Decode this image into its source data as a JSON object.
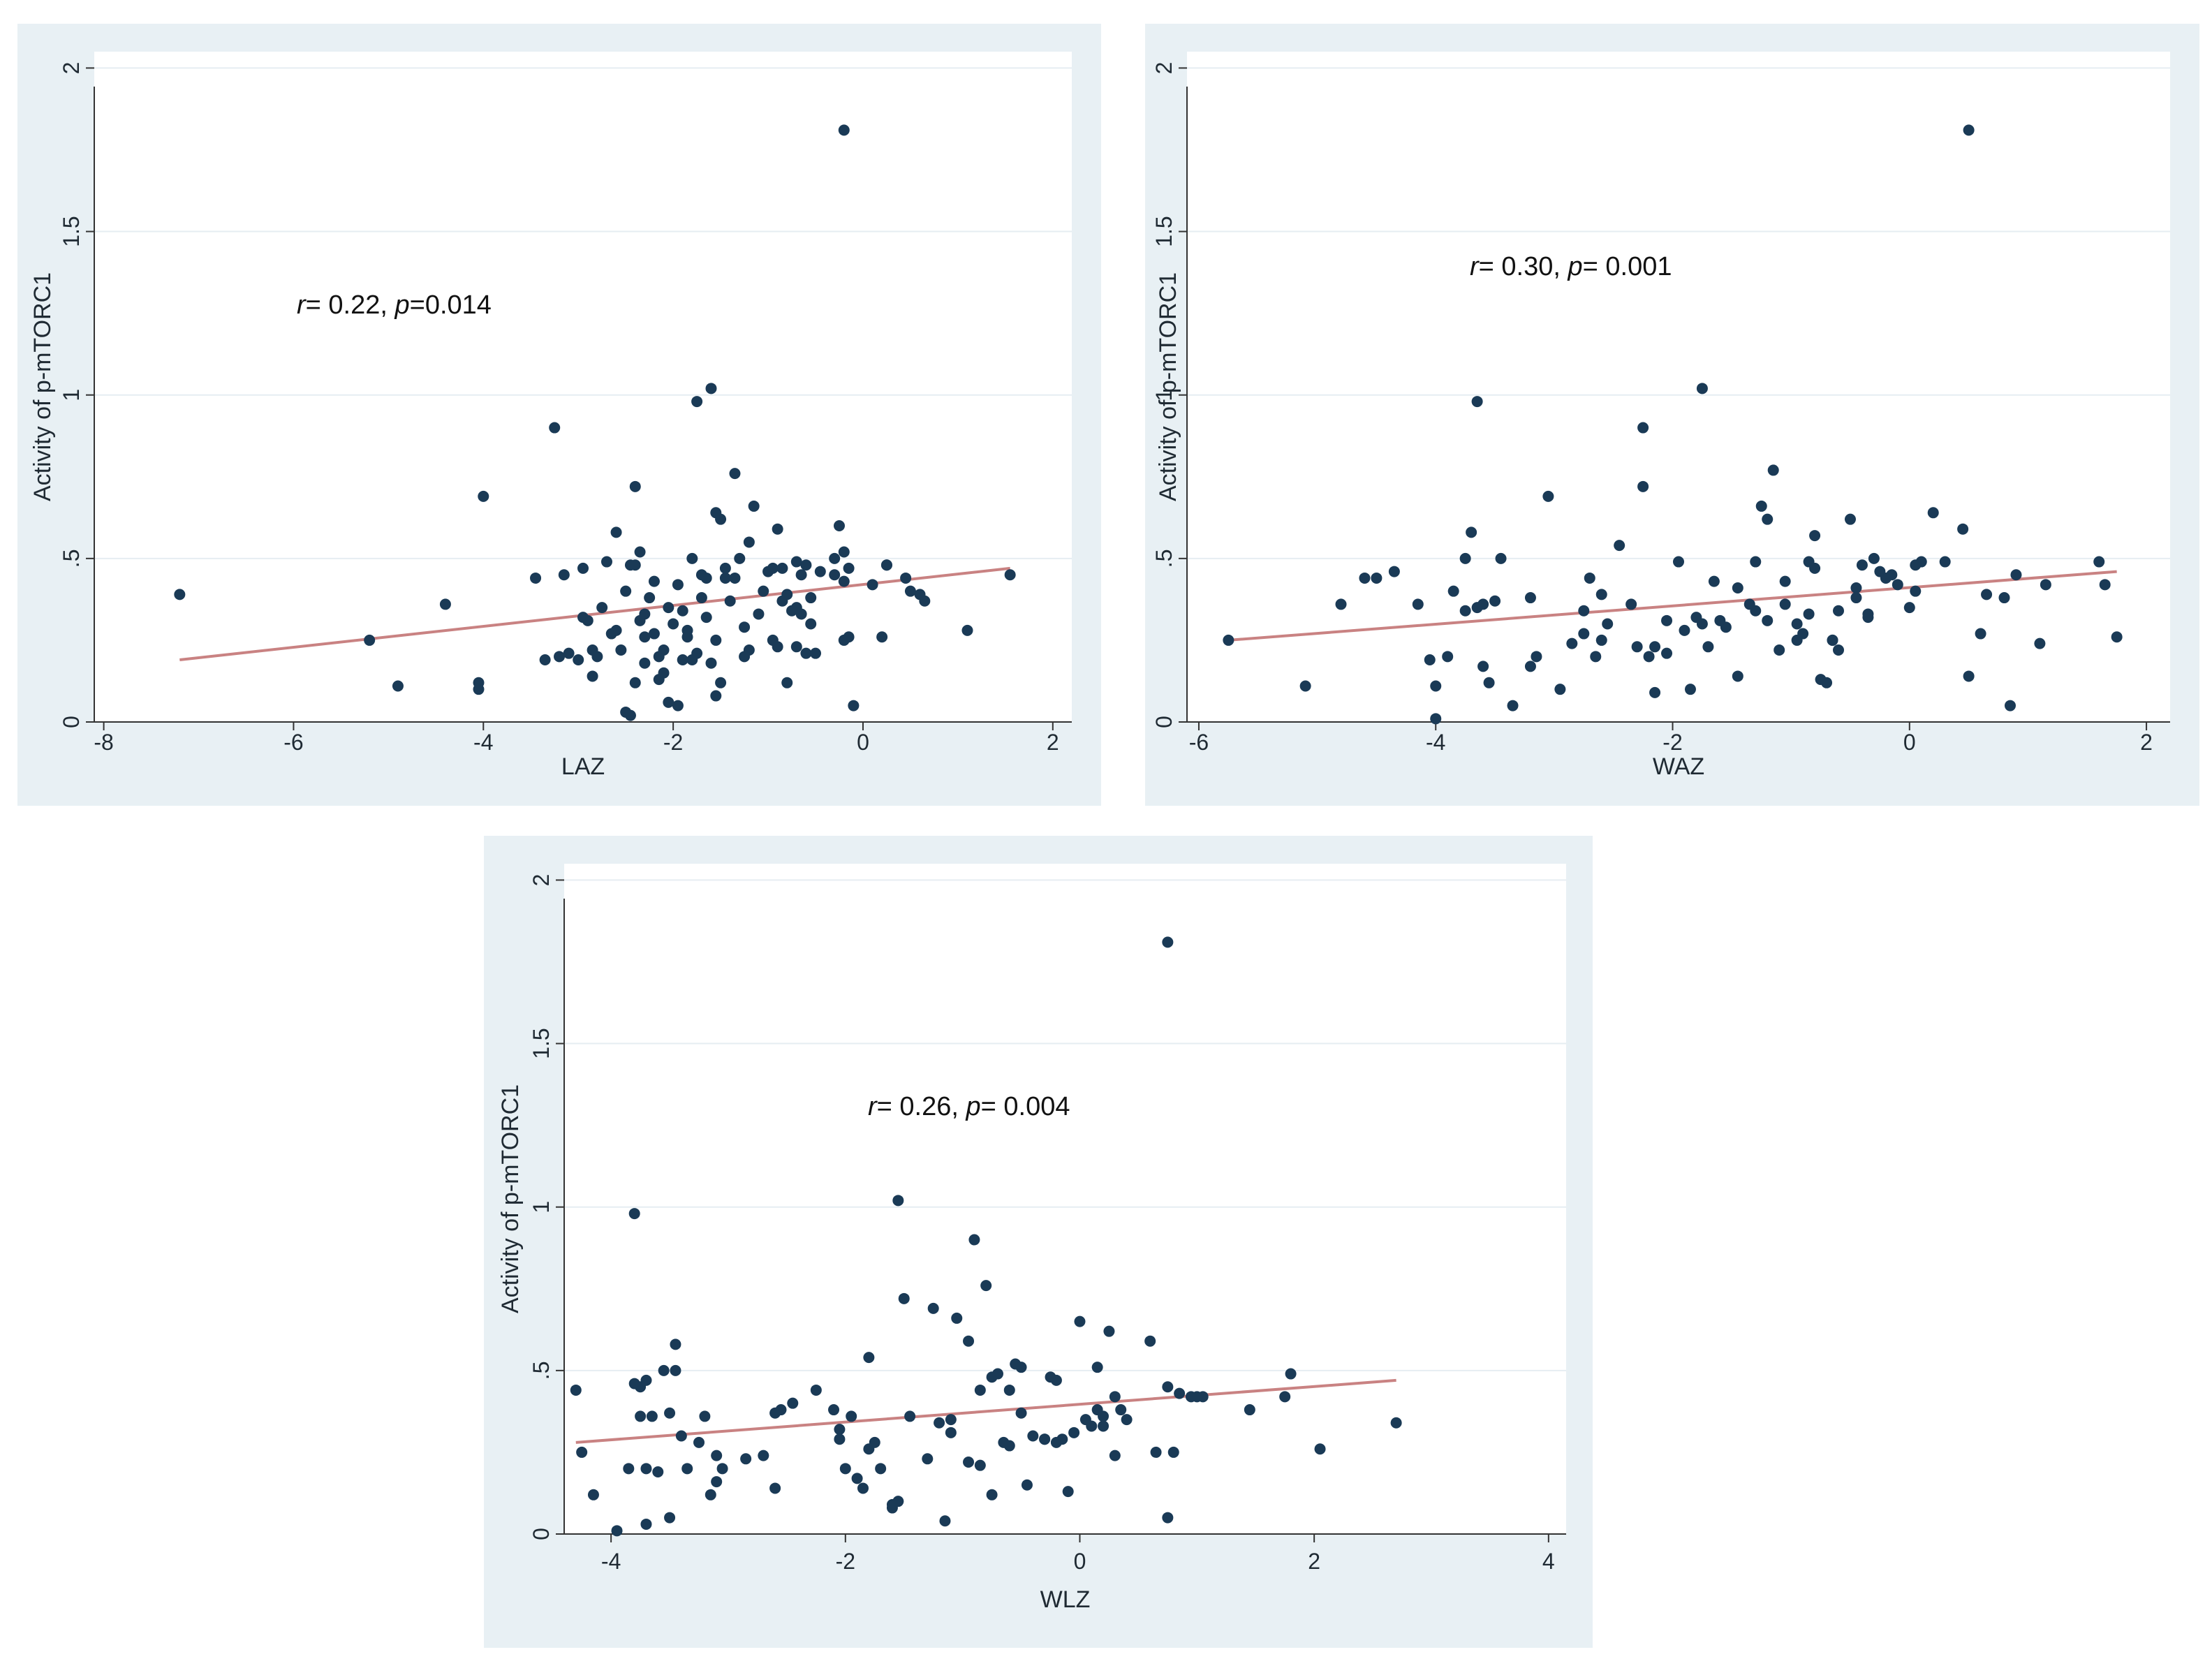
{
  "colors": {
    "panel_background": "#e8f0f4",
    "plot_background": "#ffffff",
    "point": "#1a3a56",
    "fit_line": "#c98282",
    "gridline": "#e6edf2",
    "axis": "#333333"
  },
  "chart_data": [
    {
      "type": "scatter",
      "xlabel": "LAZ",
      "ylabel": "Activity of p-mTORC1",
      "xlim": [
        -8.1,
        2.2
      ],
      "ylim": [
        0,
        2.05
      ],
      "xticks": [
        -8,
        -6,
        -4,
        -2,
        0,
        2
      ],
      "xtick_labels": [
        "-8",
        "-6",
        "-4",
        "-2",
        "0",
        "2"
      ],
      "yticks": [
        0,
        0.5,
        1,
        1.5,
        2
      ],
      "ytick_labels": [
        "0",
        ".5",
        "1",
        "1.5",
        "2"
      ],
      "grid": "horizontal",
      "annotation": {
        "r_symbol": "r",
        "r_text": "= 0.22, ",
        "p_symbol": "p",
        "p_text": "=0.014"
      },
      "fit_line": {
        "x": [
          -7.2,
          1.55
        ],
        "y": [
          0.19,
          0.47
        ]
      },
      "x": [
        -7.2,
        -5.2,
        -4.9,
        -4.4,
        -4.05,
        -4.05,
        -4.0,
        -3.25,
        -3.2,
        -3.15,
        -3.0,
        -2.95,
        -2.9,
        -2.85,
        -2.8,
        -2.7,
        -2.65,
        -2.6,
        -2.55,
        -2.5,
        -2.45,
        -2.4,
        -2.35,
        -2.3,
        -2.3,
        -2.25,
        -2.2,
        -2.15,
        -2.1,
        -2.05,
        -2.0,
        -1.95,
        -1.9,
        -1.85,
        -1.8,
        -1.8,
        -1.75,
        -1.7,
        -1.65,
        -1.6,
        -1.55,
        -1.5,
        -1.45,
        -1.4,
        -1.35,
        -1.3,
        -1.25,
        -1.2,
        -1.15,
        -1.1,
        -1.0,
        -0.95,
        -0.9,
        -0.85,
        -0.8,
        -0.75,
        -0.7,
        -0.65,
        -0.6,
        -0.55,
        -0.5,
        -0.45,
        -0.3,
        -0.25,
        -0.2,
        -0.2,
        -0.15,
        -0.1,
        0.1,
        0.2,
        0.25,
        0.45,
        0.5,
        0.6,
        0.65,
        1.1,
        1.55,
        -3.45,
        -3.35,
        -3.1,
        -2.95,
        -2.85,
        -2.75,
        -2.6,
        -2.5,
        -2.45,
        -2.4,
        -2.35,
        -2.3,
        -2.2,
        -2.15,
        -2.1,
        -2.05,
        -1.95,
        -1.9,
        -1.85,
        -1.75,
        -1.7,
        -1.65,
        -1.6,
        -1.55,
        -1.5,
        -1.45,
        -1.35,
        -1.25,
        -1.2,
        -1.05,
        -0.9,
        -0.85,
        -0.8,
        -0.7,
        -0.65,
        -0.6,
        -0.55,
        -0.3,
        -0.2,
        -0.15,
        -0.7,
        -0.95,
        0.25,
        -1.55,
        -2.4
      ],
      "y": [
        0.39,
        0.25,
        0.11,
        0.36,
        0.12,
        0.1,
        0.69,
        0.9,
        0.2,
        0.45,
        0.19,
        0.47,
        0.31,
        0.22,
        0.2,
        0.49,
        0.27,
        0.58,
        0.22,
        0.4,
        0.48,
        0.72,
        0.52,
        0.33,
        0.18,
        0.38,
        0.43,
        0.2,
        0.15,
        0.35,
        0.3,
        0.42,
        0.34,
        0.26,
        0.5,
        0.19,
        0.98,
        0.38,
        0.44,
        1.02,
        0.64,
        0.62,
        0.44,
        0.37,
        0.76,
        0.5,
        0.29,
        0.22,
        0.66,
        0.33,
        0.46,
        0.25,
        0.59,
        0.37,
        0.12,
        0.34,
        0.49,
        0.45,
        0.48,
        0.38,
        0.21,
        0.46,
        0.45,
        0.6,
        0.25,
        0.52,
        0.26,
        0.05,
        0.42,
        0.26,
        0.48,
        0.44,
        0.4,
        0.39,
        0.37,
        0.28,
        0.45,
        0.44,
        0.19,
        0.21,
        0.32,
        0.14,
        0.35,
        0.28,
        0.03,
        0.02,
        0.12,
        0.31,
        0.26,
        0.27,
        0.13,
        0.22,
        0.06,
        0.05,
        0.19,
        0.28,
        0.21,
        0.45,
        0.32,
        0.18,
        0.08,
        0.12,
        0.47,
        0.44,
        0.2,
        0.55,
        0.4,
        0.23,
        0.47,
        0.39,
        0.23,
        0.33,
        0.21,
        0.3,
        0.5,
        0.43,
        0.47,
        0.35,
        0.47,
        0.48,
        0.25,
        0.48
      ],
      "outlier": {
        "x": -0.2,
        "y": 1.81
      }
    },
    {
      "type": "scatter",
      "xlabel": "WAZ",
      "ylabel": "Activity of p-mTORC1",
      "xlim": [
        -6.1,
        2.2
      ],
      "ylim": [
        0,
        2.05
      ],
      "xticks": [
        -6,
        -4,
        -2,
        0,
        2
      ],
      "xtick_labels": [
        "-6",
        "-4",
        "-2",
        "0",
        "2"
      ],
      "yticks": [
        0,
        0.5,
        1,
        1.5,
        2
      ],
      "ytick_labels": [
        "0",
        ".5",
        "1",
        "1.5",
        "2"
      ],
      "grid": "horizontal",
      "annotation": {
        "r_symbol": "r",
        "r_text": "= 0.30, ",
        "p_symbol": "p",
        "p_text": "= 0.001"
      },
      "fit_line": {
        "x": [
          -5.75,
          1.75
        ],
        "y": [
          0.25,
          0.46
        ]
      },
      "x": [
        -5.75,
        -5.1,
        -4.8,
        -4.6,
        -4.5,
        -4.35,
        -4.15,
        -4.05,
        -4.0,
        -4.0,
        -3.9,
        -3.75,
        -3.7,
        -3.65,
        -3.6,
        -3.55,
        -3.5,
        -3.45,
        -3.35,
        -3.2,
        -3.15,
        -3.05,
        -2.95,
        -2.85,
        -2.75,
        -2.7,
        -2.65,
        -2.6,
        -2.55,
        -2.45,
        -2.35,
        -2.3,
        -2.25,
        -2.2,
        -2.15,
        -2.05,
        -1.95,
        -1.9,
        -1.85,
        -1.75,
        -1.7,
        -1.65,
        -1.55,
        -1.45,
        -1.35,
        -1.3,
        -1.25,
        -1.2,
        -1.15,
        -1.1,
        -1.05,
        -0.95,
        -0.9,
        -0.85,
        -0.8,
        -0.75,
        -0.7,
        -0.65,
        -0.6,
        -0.5,
        -0.45,
        -0.4,
        -0.35,
        -0.3,
        -0.25,
        -0.2,
        -0.15,
        -0.1,
        0.0,
        0.05,
        0.1,
        0.2,
        0.45,
        0.5,
        0.6,
        0.65,
        0.8,
        0.85,
        0.9,
        1.1,
        1.15,
        1.6,
        1.65,
        1.75,
        -3.85,
        -3.75,
        -3.2,
        -2.75,
        -2.6,
        -2.15,
        -2.05,
        -1.8,
        -1.6,
        -1.45,
        -1.3,
        -1.05,
        -0.95,
        -0.8,
        -0.65,
        -0.6,
        -0.85,
        -0.35,
        0.05,
        0.3,
        -3.65,
        -2.25,
        -1.2,
        -0.45,
        -3.6,
        -1.75
      ],
      "y": [
        0.25,
        0.11,
        0.36,
        0.44,
        0.44,
        0.46,
        0.36,
        0.19,
        0.11,
        0.01,
        0.2,
        0.5,
        0.58,
        0.35,
        0.17,
        0.12,
        0.37,
        0.5,
        0.05,
        0.38,
        0.2,
        0.69,
        0.1,
        0.24,
        0.34,
        0.44,
        0.2,
        0.25,
        0.3,
        0.54,
        0.36,
        0.23,
        0.72,
        0.2,
        0.09,
        0.31,
        0.49,
        0.28,
        0.1,
        0.3,
        0.23,
        0.43,
        0.29,
        0.14,
        0.36,
        0.49,
        0.66,
        0.62,
        0.77,
        0.22,
        0.36,
        0.3,
        0.27,
        0.49,
        0.57,
        0.13,
        0.12,
        0.25,
        0.34,
        0.62,
        0.41,
        0.48,
        0.33,
        0.5,
        0.46,
        0.44,
        0.45,
        0.42,
        0.35,
        0.48,
        0.49,
        0.64,
        0.59,
        0.14,
        0.27,
        0.39,
        0.38,
        0.05,
        0.45,
        0.24,
        0.42,
        0.49,
        0.42,
        0.26,
        0.4,
        0.34,
        0.17,
        0.27,
        0.39,
        0.23,
        0.21,
        0.32,
        0.31,
        0.41,
        0.34,
        0.43,
        0.25,
        0.47,
        0.25,
        0.22,
        0.33,
        0.32,
        0.4,
        0.49,
        0.98,
        0.9,
        0.31,
        0.38,
        0.36,
        1.02
      ],
      "outlier": {
        "x": 0.5,
        "y": 1.81
      }
    },
    {
      "type": "scatter",
      "xlabel": "WLZ",
      "ylabel": "Activity of p-mTORC1",
      "xlim": [
        -4.4,
        4.15
      ],
      "ylim": [
        0,
        2.05
      ],
      "xticks": [
        -4,
        -2,
        0,
        2,
        4
      ],
      "xtick_labels": [
        "-4",
        "-2",
        "0",
        "2",
        "4"
      ],
      "yticks": [
        0,
        0.5,
        1,
        1.5,
        2
      ],
      "ytick_labels": [
        "0",
        ".5",
        "1",
        "1.5",
        "2"
      ],
      "grid": "horizontal",
      "annotation": {
        "r_symbol": "r",
        "r_text": "= 0.26, ",
        "p_symbol": "p",
        "p_text": "= 0.004"
      },
      "fit_line": {
        "x": [
          -4.3,
          2.7
        ],
        "y": [
          0.28,
          0.47
        ]
      },
      "x": [
        -4.3,
        -4.25,
        -4.15,
        -3.95,
        -3.85,
        -3.8,
        -3.75,
        -3.75,
        -3.7,
        -3.7,
        -3.65,
        -3.6,
        -3.55,
        -3.5,
        -3.45,
        -3.45,
        -3.4,
        -3.35,
        -3.25,
        -3.2,
        -3.15,
        -3.1,
        -3.05,
        -2.85,
        -2.7,
        -2.6,
        -2.55,
        -2.45,
        -2.25,
        -2.1,
        -2.05,
        -2.0,
        -1.95,
        -1.9,
        -1.85,
        -1.8,
        -1.75,
        -1.7,
        -1.6,
        -1.55,
        -1.5,
        -1.45,
        -1.3,
        -1.25,
        -1.15,
        -1.1,
        -1.05,
        -0.95,
        -0.9,
        -0.85,
        -0.8,
        -0.75,
        -0.7,
        -0.65,
        -0.6,
        -0.55,
        -0.5,
        -0.45,
        -0.4,
        -0.3,
        -0.25,
        -0.2,
        -0.15,
        -0.1,
        -0.05,
        0.0,
        0.05,
        0.1,
        0.15,
        0.2,
        0.25,
        0.3,
        0.35,
        0.4,
        0.6,
        0.65,
        0.75,
        0.75,
        0.8,
        0.85,
        0.95,
        1.0,
        1.05,
        1.45,
        1.75,
        1.8,
        2.05,
        2.7,
        -3.7,
        -3.5,
        -3.1,
        -2.6,
        -2.05,
        -1.8,
        -1.6,
        -1.2,
        -0.95,
        -0.75,
        -0.5,
        -0.3,
        0.15,
        0.2,
        0.3,
        -3.8,
        -1.55,
        -1.1,
        -0.85,
        -0.6,
        -0.2
      ],
      "y": [
        0.44,
        0.25,
        0.12,
        0.01,
        0.2,
        0.98,
        0.45,
        0.36,
        0.47,
        0.2,
        0.36,
        0.19,
        0.5,
        0.37,
        0.58,
        0.5,
        0.3,
        0.2,
        0.28,
        0.36,
        0.12,
        0.24,
        0.2,
        0.23,
        0.24,
        0.37,
        0.38,
        0.4,
        0.44,
        0.38,
        0.32,
        0.2,
        0.36,
        0.17,
        0.14,
        0.54,
        0.28,
        0.2,
        0.08,
        0.1,
        0.72,
        0.36,
        0.23,
        0.69,
        0.04,
        0.35,
        0.66,
        0.59,
        0.9,
        0.21,
        0.76,
        0.48,
        0.49,
        0.28,
        0.44,
        0.52,
        0.51,
        0.15,
        0.3,
        0.29,
        0.48,
        0.47,
        0.29,
        0.13,
        0.31,
        0.65,
        0.35,
        0.33,
        0.38,
        0.36,
        0.62,
        0.24,
        0.38,
        0.35,
        0.59,
        0.25,
        0.45,
        0.05,
        0.25,
        0.43,
        0.42,
        0.42,
        0.42,
        0.38,
        0.42,
        0.49,
        0.26,
        0.34,
        0.03,
        0.05,
        0.16,
        0.14,
        0.29,
        0.26,
        0.09,
        0.34,
        0.22,
        0.12,
        0.37,
        0.29,
        0.51,
        0.33,
        0.42,
        0.46,
        1.02,
        0.31,
        0.44,
        0.27,
        0.28
      ],
      "outlier": {
        "x": 0.75,
        "y": 1.81
      }
    }
  ]
}
